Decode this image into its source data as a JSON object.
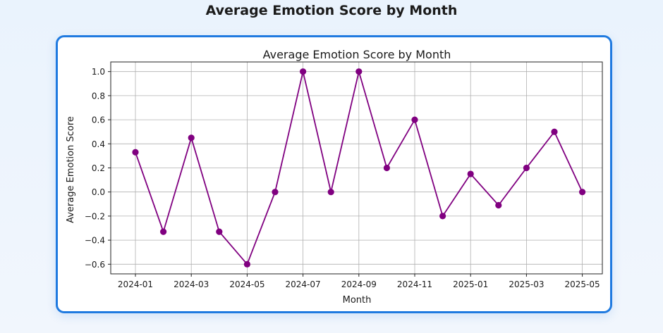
{
  "page": {
    "title": "Average Emotion Score by Month"
  },
  "chart_data": {
    "type": "line",
    "title": "Average Emotion Score by Month",
    "xlabel": "Month",
    "ylabel": "Average Emotion Score",
    "x": [
      "2024-01",
      "2024-02",
      "2024-03",
      "2024-04",
      "2024-05",
      "2024-06",
      "2024-07",
      "2024-08",
      "2024-09",
      "2024-10",
      "2024-11",
      "2024-12",
      "2025-01",
      "2025-02",
      "2025-03",
      "2025-04",
      "2025-05"
    ],
    "x_tick_labels": [
      "2024-01",
      "2024-03",
      "2024-05",
      "2024-07",
      "2024-09",
      "2024-11",
      "2025-01",
      "2025-03",
      "2025-05"
    ],
    "series": [
      {
        "values": [
          0.33,
          -0.33,
          0.45,
          -0.33,
          -0.6,
          0.0,
          1.0,
          0.0,
          1.0,
          0.2,
          0.6,
          -0.2,
          0.15,
          -0.11,
          0.2,
          0.5,
          0.0
        ]
      }
    ],
    "ylim": [
      -0.68,
      1.08
    ],
    "y_ticks": [
      -0.6,
      -0.4,
      -0.2,
      0.0,
      0.2,
      0.4,
      0.6,
      0.8,
      1.0
    ],
    "y_tick_labels": [
      "−0.6",
      "−0.4",
      "−0.2",
      "0.0",
      "0.2",
      "0.4",
      "0.6",
      "0.8",
      "1.0"
    ],
    "grid": true,
    "line_color": "#800080",
    "marker": "circle"
  }
}
